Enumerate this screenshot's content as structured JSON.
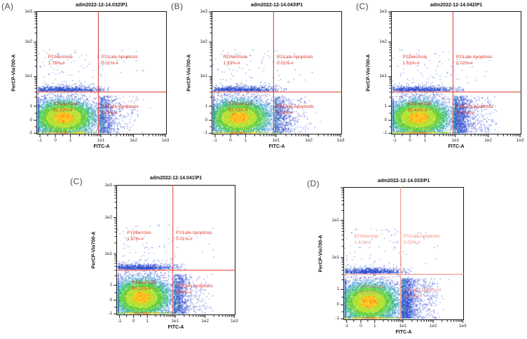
{
  "page": {
    "background": "#ffffff",
    "description_title": "Flow cytometry apoptosis density plots"
  },
  "chart_data": [
    {
      "id": "A",
      "panel_letter": "(A)",
      "type": "scatter",
      "subtype": "flow-cytometry-density",
      "title": "adm2022-12-14.032\\P1",
      "xlabel": "FITC-A",
      "ylabel": "PerCP-Vio700-A",
      "x_ticks": [
        "-1",
        "0",
        "1",
        "1e1",
        "1e2",
        "1e3"
      ],
      "y_ticks": [
        "1e3",
        "1e2",
        "1e1",
        "1",
        "0",
        "-1"
      ],
      "scale": "biexponential",
      "grid": false,
      "accent": "#d9352c",
      "hide_top_y_label": false,
      "gates": {
        "necrosis": {
          "label": "P1\\Necrosis",
          "percent": "1.76%-#",
          "value": 1.76
        },
        "late_apoptosis": {
          "label": "P1\\Late Apoptosis",
          "percent": "0.01%-#",
          "value": 0.01
        },
        "live_cell": {
          "label": "P1\\Live Cell",
          "percent": "91.52%-#",
          "value": 91.52
        },
        "early_apoptosis": {
          "label": "P1\\Early Apoptosis",
          "percent": "6.71%-#",
          "value": 6.71
        }
      }
    },
    {
      "id": "B",
      "panel_letter": "(B)",
      "type": "scatter",
      "subtype": "flow-cytometry-density",
      "title": "adm2022-12-14.043\\P1",
      "xlabel": "FITC-A",
      "ylabel": "PerCP-Vio700-A",
      "x_ticks": [
        "-1",
        "0",
        "1",
        "1e1",
        "1e2",
        "1e3"
      ],
      "y_ticks": [
        "1e3",
        "1e2",
        "1e1",
        "1",
        "0",
        "-1"
      ],
      "scale": "biexponential",
      "grid": false,
      "accent": "#d9352c",
      "hide_top_y_label": false,
      "gates": {
        "necrosis": {
          "label": "P1\\Necrosis",
          "percent": "1.53%-#",
          "value": 1.53
        },
        "late_apoptosis": {
          "label": "P1\\Late Apoptosis",
          "percent": "0.01%-#",
          "value": 0.01
        },
        "live_cell": {
          "label": "P1\\Live Cell",
          "percent": "92.72%-#",
          "value": 92.72
        },
        "early_apoptosis": {
          "label": "P1\\Early Apoptosis",
          "percent": "5.74%-#",
          "value": 5.74
        }
      }
    },
    {
      "id": "C1",
      "panel_letter": "(C)",
      "type": "scatter",
      "subtype": "flow-cytometry-density",
      "title": "adm2022-12-14.042\\P1",
      "xlabel": "FITC-A",
      "ylabel": "PerCP-Vio700-A",
      "x_ticks": [
        "-1",
        "0",
        "1",
        "1e1",
        "1e2",
        "1e3"
      ],
      "y_ticks": [
        "1e3",
        "1e2",
        "1e1",
        "1",
        "0",
        "-1"
      ],
      "scale": "biexponential",
      "grid": false,
      "accent": "#dd372b",
      "hide_top_y_label": false,
      "gates": {
        "necrosis": {
          "label": "P1\\Necrosis",
          "percent": "1.61%-#",
          "value": 1.61
        },
        "late_apoptosis": {
          "label": "P1\\Late Apoptosis",
          "percent": "0.02%-#",
          "value": 0.02
        },
        "live_cell": {
          "label": "P1\\Live Cell",
          "percent": "85.42%-#",
          "value": 85.42
        },
        "early_apoptosis": {
          "label": "P1\\Early Apoptosis",
          "percent": "12.95%-#",
          "value": 12.95
        }
      }
    },
    {
      "id": "C2",
      "panel_letter": "(C)",
      "type": "scatter",
      "subtype": "flow-cytometry-density",
      "title": "adm2022-12-14.041\\P1",
      "xlabel": "FITC-A",
      "ylabel": "PerCP-Vio700-A",
      "x_ticks": [
        "-1",
        "0",
        "1",
        "1e1",
        "1e2",
        "1e3"
      ],
      "y_ticks": [
        "1e3",
        "1e2",
        "1e1",
        "1",
        "0",
        "-1"
      ],
      "scale": "biexponential",
      "grid": false,
      "accent": "#e8392e",
      "hide_top_y_label": false,
      "gates": {
        "necrosis": {
          "label": "P1\\Necrosis",
          "percent": "1.57%-#",
          "value": 1.57
        },
        "late_apoptosis": {
          "label": "P1\\Late Apoptosis",
          "percent": "0.01%-#",
          "value": 0.01
        },
        "live_cell": {
          "label": "P1\\Live Cell",
          "percent": "90.15%-#",
          "value": 90.15
        },
        "early_apoptosis": {
          "label": "P1\\Early Apoptosis",
          "percent": "8.28%-#",
          "value": 8.28
        }
      }
    },
    {
      "id": "D",
      "panel_letter": "(D)",
      "type": "scatter",
      "subtype": "flow-cytometry-density",
      "title": "adm2022-12-14.033\\P1",
      "xlabel": "FITC-A",
      "ylabel": "PerCP-Vio700-A",
      "x_ticks": [
        "-1",
        "0",
        "1",
        "1e1",
        "1e2",
        "1e3"
      ],
      "y_ticks": [
        "1e3",
        "1e2",
        "1e1",
        "1",
        "0",
        "-1"
      ],
      "scale": "biexponential",
      "grid": false,
      "accent": "#f08b7e",
      "hide_top_y_label": true,
      "gates": {
        "necrosis": {
          "label": "P1\\Necrosis",
          "percent": "1.41%-#",
          "value": 1.41
        },
        "late_apoptosis": {
          "label": "P1\\Late Apoptosis",
          "percent": "0.02%-#",
          "value": 0.02
        },
        "live_cell": {
          "label": "P1\\Live Cell",
          "percent": "82.63%-#",
          "value": 82.63
        },
        "early_apoptosis": {
          "label": "P1\\Early Apoptosis",
          "percent": "15.93%-#",
          "value": 15.93
        }
      }
    }
  ]
}
